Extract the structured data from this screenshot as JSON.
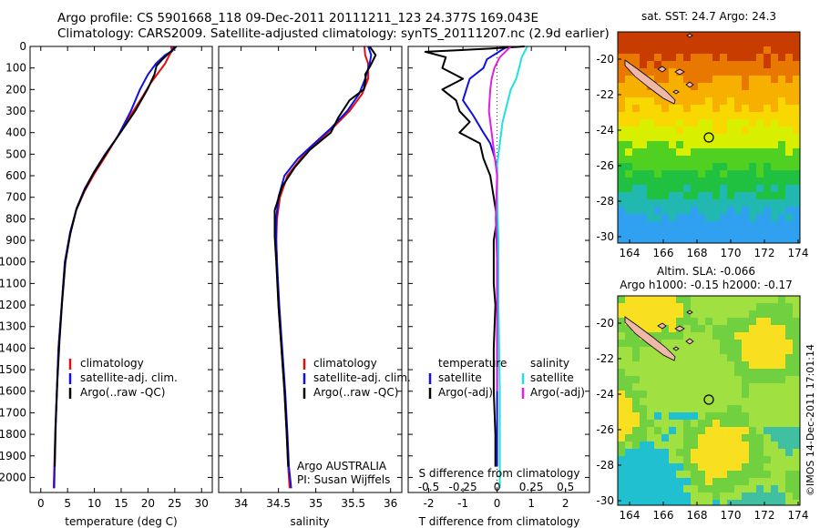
{
  "header": {
    "line1": "Argo profile: CS 5901668_118 09-Dec-2011 20111211_123 24.377S 169.043E",
    "line2": "Climatology: CARS2009. Satellite-adjusted climatology: synTS_20111207.nc (2.9d earlier)"
  },
  "colors": {
    "climatology": "#e01010",
    "satellite": "#1010e0",
    "argo": "#000000",
    "sat_salinity": "#20e0e0",
    "argo_salinity": "#e020e0"
  },
  "chart_data": [
    {
      "type": "line",
      "panel": "temperature",
      "xlabel": "temperature (deg C)",
      "ylabel": "",
      "xlim": [
        -2,
        32
      ],
      "ylim": [
        2070,
        0
      ],
      "xticks": [
        0,
        5,
        10,
        15,
        20,
        25,
        30
      ],
      "yticks": [
        0,
        100,
        200,
        300,
        400,
        500,
        600,
        700,
        800,
        900,
        1000,
        1100,
        1200,
        1300,
        1400,
        1500,
        1600,
        1700,
        1800,
        1900,
        2000
      ],
      "legend": [
        "climatology",
        "satellite-adj. clim.",
        "Argo(..raw -QC)"
      ],
      "series": [
        {
          "name": "climatology",
          "color": "#e01010",
          "x": [
            24.3,
            24.5,
            24.0,
            23.2,
            22.0,
            20.5,
            18.8,
            16.5,
            14.0,
            11.8,
            10.0,
            8.2,
            6.6,
            5.5,
            4.5,
            3.9,
            3.3,
            3.0,
            2.7,
            2.4
          ],
          "y": [
            0,
            20,
            40,
            80,
            120,
            170,
            240,
            330,
            430,
            520,
            590,
            670,
            760,
            870,
            1000,
            1200,
            1400,
            1600,
            1800,
            2050
          ]
        },
        {
          "name": "satellite-adj. clim.",
          "color": "#1010e0",
          "x": [
            24.8,
            24.6,
            23.2,
            21.5,
            20.0,
            18.5,
            16.8,
            14.3,
            12.0,
            10.0,
            8.2,
            6.7,
            5.5,
            4.5,
            3.9,
            3.3,
            3.0,
            2.7,
            2.5
          ],
          "y": [
            0,
            20,
            40,
            80,
            130,
            200,
            300,
            420,
            500,
            580,
            660,
            750,
            860,
            1000,
            1200,
            1400,
            1600,
            1800,
            2050
          ]
        },
        {
          "name": "Argo(..raw -QC)",
          "color": "#000000",
          "x": [
            25.3,
            24.4,
            22.7,
            21.6,
            21.2,
            19.9,
            17.6,
            15.4,
            13.2,
            11.6,
            9.8,
            8.1,
            6.6,
            5.5,
            4.6,
            4.0,
            3.5,
            3.1,
            2.8,
            2.6
          ],
          "y": [
            0,
            20,
            60,
            90,
            130,
            200,
            300,
            380,
            460,
            520,
            590,
            670,
            760,
            870,
            1000,
            1180,
            1360,
            1550,
            1750,
            1950
          ]
        }
      ]
    },
    {
      "type": "line",
      "panel": "salinity",
      "xlabel": "salinity",
      "xlim": [
        33.7,
        36.15
      ],
      "ylim": [
        2070,
        0
      ],
      "xticks": [
        34,
        34.5,
        35,
        35.5,
        36
      ],
      "legend": [
        "climatology",
        "satellite-adj. clim.",
        "Argo(..raw -QC)"
      ],
      "annotation": [
        "Argo AUSTRALIA",
        "PI: Susan Wijffels"
      ],
      "series": [
        {
          "name": "climatology",
          "color": "#e01010",
          "x": [
            35.65,
            35.66,
            35.7,
            35.7,
            35.62,
            35.45,
            35.22,
            35.0,
            34.8,
            34.62,
            34.52,
            34.48,
            34.47,
            34.48,
            34.5,
            34.54,
            34.58,
            34.61,
            34.63,
            34.65
          ],
          "y": [
            0,
            40,
            80,
            150,
            220,
            300,
            380,
            450,
            520,
            600,
            700,
            800,
            900,
            1000,
            1200,
            1400,
            1600,
            1800,
            1950,
            2050
          ]
        },
        {
          "name": "satellite-adj. clim.",
          "color": "#1010e0",
          "x": [
            35.7,
            35.74,
            35.72,
            35.66,
            35.58,
            35.42,
            35.2,
            34.98,
            34.76,
            34.58,
            34.5,
            34.47,
            34.47,
            34.48,
            34.51,
            34.55,
            34.59,
            34.62,
            34.64,
            34.67
          ],
          "y": [
            0,
            40,
            80,
            150,
            220,
            300,
            380,
            450,
            520,
            600,
            700,
            800,
            900,
            1000,
            1200,
            1400,
            1600,
            1800,
            1950,
            2050
          ]
        },
        {
          "name": "Argo(..raw -QC)",
          "color": "#000000",
          "x": [
            35.72,
            35.8,
            35.73,
            35.66,
            35.67,
            35.64,
            35.45,
            35.3,
            35.2,
            34.92,
            34.72,
            34.55,
            34.45,
            34.45,
            34.47,
            34.5,
            34.54,
            34.58,
            34.61,
            34.63
          ],
          "y": [
            0,
            40,
            90,
            130,
            150,
            200,
            250,
            330,
            400,
            480,
            560,
            650,
            760,
            880,
            1000,
            1200,
            1400,
            1600,
            1800,
            1950
          ]
        }
      ]
    },
    {
      "type": "line",
      "panel": "difference",
      "xlabel": "T difference from climatology",
      "xlabel_top": "S difference from climatology",
      "xlim": [
        -2.6,
        2.7
      ],
      "ylim": [
        2070,
        0
      ],
      "xticks": [
        -2,
        -1,
        0,
        1,
        2
      ],
      "xticks_s": [
        -0.5,
        -0.25,
        0,
        0.25,
        0.5
      ],
      "legend_headers": [
        "temperature",
        "salinity"
      ],
      "legend": [
        "satellite",
        "Argo(-adj)",
        "satellite",
        "Argo(-adj)"
      ],
      "series": [
        {
          "name": "temperature satellite",
          "color": "#1010e0",
          "x": [
            0.3,
            0.1,
            -0.3,
            -0.4,
            -0.8,
            -0.9,
            -1.0,
            -0.7,
            -0.4,
            -0.2,
            -0.1,
            0.0,
            0.0,
            0.0,
            0.0,
            0.0,
            0.0,
            0.0,
            0.0
          ],
          "y": [
            0,
            20,
            60,
            100,
            150,
            200,
            250,
            320,
            400,
            450,
            500,
            560,
            700,
            900,
            1100,
            1300,
            1500,
            1700,
            1950
          ]
        },
        {
          "name": "temperature Argo(-adj)",
          "color": "#000000",
          "x": [
            0.8,
            -0.2,
            -2.1,
            -1.5,
            -1.6,
            -1.0,
            -1.6,
            -1.2,
            -1.1,
            -0.8,
            -1.1,
            -0.5,
            -0.4,
            -0.2,
            -0.1,
            0.0,
            -0.1,
            -0.1,
            -0.1,
            -0.05,
            -0.1,
            -0.1,
            -0.1,
            -0.05,
            -0.05
          ],
          "y": [
            0,
            10,
            25,
            50,
            100,
            150,
            200,
            250,
            300,
            350,
            400,
            450,
            520,
            600,
            700,
            800,
            900,
            1000,
            1100,
            1200,
            1400,
            1500,
            1600,
            1800,
            1950
          ]
        },
        {
          "name": "salinity satellite",
          "color": "#20e0e0",
          "x": [
            0.22,
            0.18,
            0.16,
            0.14,
            0.1,
            0.08,
            0.04,
            0.02,
            0.0,
            0.0,
            0.01,
            0.01,
            0.02,
            0.02
          ],
          "y": [
            0,
            50,
            100,
            150,
            200,
            250,
            350,
            450,
            550,
            700,
            900,
            1200,
            1600,
            2050
          ]
        },
        {
          "name": "salinity Argo(-adj)",
          "color": "#e020e0",
          "x": [
            0.1,
            0.02,
            -0.02,
            -0.04,
            -0.05,
            -0.06,
            -0.04,
            -0.02,
            0.0,
            -0.01,
            0.0,
            0.0,
            0.0
          ],
          "y": [
            0,
            50,
            100,
            150,
            200,
            300,
            400,
            500,
            600,
            800,
            1000,
            1200,
            1600
          ]
        }
      ]
    }
  ],
  "maps": [
    {
      "title": "sat. SST: 24.7  Argo: 24.3",
      "title_lines": [
        "sat. SST: 24.7  Argo: 24.3"
      ],
      "xticks": [
        "164",
        "166",
        "168",
        "170",
        "172",
        "174"
      ],
      "yticks": [
        "-20",
        "-22",
        "-24",
        "-26",
        "-28",
        "-30"
      ],
      "color_bands": [
        "#c83c00",
        "#e87800",
        "#f8b000",
        "#f8d800",
        "#d8f000",
        "#50d020",
        "#20c040",
        "#20b8b0",
        "#30a0f0"
      ]
    },
    {
      "title_lines": [
        "Altim. SLA: -0.066",
        "Argo h1000: -0.15  h2000: -0.17"
      ],
      "xticks": [
        "164",
        "166",
        "168",
        "170",
        "172",
        "174"
      ],
      "yticks": [
        "-20",
        "-22",
        "-24",
        "-26",
        "-28",
        "-30"
      ],
      "color_bands": [
        "#a0e040",
        "#70d040",
        "#f8e020",
        "#40c0a0",
        "#20c0d0"
      ]
    }
  ],
  "footer": {
    "credit": "©IMOS 14-Dec-2011 17:01:14"
  }
}
